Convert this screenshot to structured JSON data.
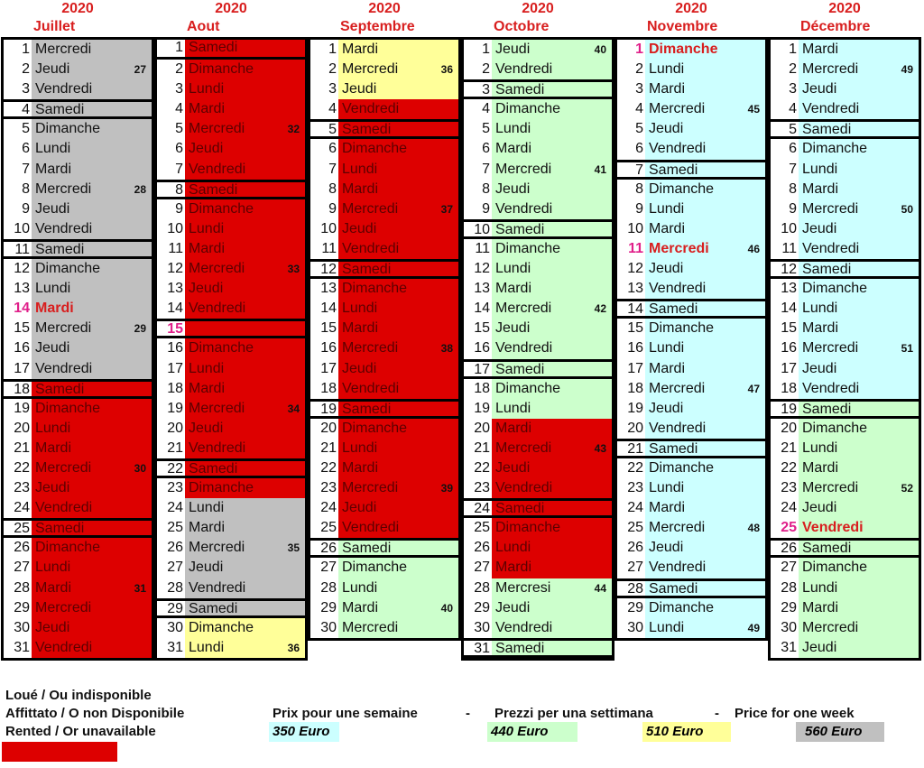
{
  "colors": {
    "g": "#c0c0c0",
    "r": "#dd0000",
    "y": "#ffff99",
    "gr": "#ccffcc",
    "c": "#ccffff"
  },
  "months": [
    {
      "year": "2020",
      "name": "Juillet",
      "days": [
        [
          1,
          "Mercredi",
          "",
          "g"
        ],
        [
          2,
          "Jeudi",
          "27",
          "g"
        ],
        [
          3,
          "Vendredi",
          "",
          "g"
        ],
        [
          4,
          "Samedi",
          "",
          "g"
        ],
        [
          5,
          "Dimanche",
          "",
          "g"
        ],
        [
          6,
          "Lundi",
          "",
          "g"
        ],
        [
          7,
          "Mardi",
          "",
          "g"
        ],
        [
          8,
          "Mercredi",
          "28",
          "g"
        ],
        [
          9,
          "Jeudi",
          "",
          "g"
        ],
        [
          10,
          "Vendredi",
          "",
          "g"
        ],
        [
          11,
          "Samedi",
          "",
          "g"
        ],
        [
          12,
          "Dimanche",
          "",
          "g"
        ],
        [
          13,
          "Lundi",
          "",
          "g"
        ],
        [
          14,
          "Mardi",
          "",
          "g",
          1
        ],
        [
          15,
          "Mercredi",
          "29",
          "g"
        ],
        [
          16,
          "Jeudi",
          "",
          "g"
        ],
        [
          17,
          "Vendredi",
          "",
          "g"
        ],
        [
          18,
          "Samedi",
          "",
          "r"
        ],
        [
          19,
          "Dimanche",
          "",
          "r"
        ],
        [
          20,
          "Lundi",
          "",
          "r"
        ],
        [
          21,
          "Mardi",
          "",
          "r"
        ],
        [
          22,
          "Mercredi",
          "30",
          "r"
        ],
        [
          23,
          "Jeudi",
          "",
          "r"
        ],
        [
          24,
          "Vendredi",
          "",
          "r"
        ],
        [
          25,
          "Samedi",
          "",
          "r"
        ],
        [
          26,
          "Dimanche",
          "",
          "r"
        ],
        [
          27,
          "Lundi",
          "",
          "r"
        ],
        [
          28,
          "Mardi",
          "31",
          "r"
        ],
        [
          29,
          "Mercredi",
          "",
          "r"
        ],
        [
          30,
          "Jeudi",
          "",
          "r"
        ],
        [
          31,
          "Vendredi",
          "",
          "r"
        ]
      ]
    },
    {
      "year": "2020",
      "name": "Aout",
      "days": [
        [
          1,
          "Samedi",
          "",
          "r"
        ],
        [
          2,
          "Dimanche",
          "",
          "r"
        ],
        [
          3,
          "Lundi",
          "",
          "r"
        ],
        [
          4,
          "Mardi",
          "",
          "r"
        ],
        [
          5,
          "Mercredi",
          "32",
          "r"
        ],
        [
          6,
          "Jeudi",
          "",
          "r"
        ],
        [
          7,
          "Vendredi",
          "",
          "r"
        ],
        [
          8,
          "Samedi",
          "",
          "r"
        ],
        [
          9,
          "Dimanche",
          "",
          "r"
        ],
        [
          10,
          "Lundi",
          "",
          "r"
        ],
        [
          11,
          "Mardi",
          "",
          "r"
        ],
        [
          12,
          "Mercredi",
          "33",
          "r"
        ],
        [
          13,
          "Jeudi",
          "",
          "r"
        ],
        [
          14,
          "Vendredi",
          "",
          "r"
        ],
        [
          15,
          "",
          "",
          "r",
          1
        ],
        [
          16,
          "Dimanche",
          "",
          "r"
        ],
        [
          17,
          "Lundi",
          "",
          "r"
        ],
        [
          18,
          "Mardi",
          "",
          "r"
        ],
        [
          19,
          "Mercredi",
          "34",
          "r"
        ],
        [
          20,
          "Jeudi",
          "",
          "r"
        ],
        [
          21,
          "Vendredi",
          "",
          "r"
        ],
        [
          22,
          "Samedi",
          "",
          "r"
        ],
        [
          23,
          "Dimanche",
          "",
          "r"
        ],
        [
          24,
          "Lundi",
          "",
          "g"
        ],
        [
          25,
          "Mardi",
          "",
          "g"
        ],
        [
          26,
          "Mercredi",
          "35",
          "g"
        ],
        [
          27,
          "Jeudi",
          "",
          "g"
        ],
        [
          28,
          "Vendredi",
          "",
          "g"
        ],
        [
          29,
          "Samedi",
          "",
          "g"
        ],
        [
          30,
          "Dimanche",
          "",
          "y"
        ],
        [
          31,
          "Lundi",
          "36",
          "y"
        ]
      ]
    },
    {
      "year": "2020",
      "name": "Septembre",
      "days": [
        [
          1,
          "Mardi",
          "",
          "y"
        ],
        [
          2,
          "Mercredi",
          "36",
          "y"
        ],
        [
          3,
          "Jeudi",
          "",
          "y"
        ],
        [
          4,
          "Vendredi",
          "",
          "r"
        ],
        [
          5,
          "Samedi",
          "",
          "r"
        ],
        [
          6,
          "Dimanche",
          "",
          "r"
        ],
        [
          7,
          "Lundi",
          "",
          "r"
        ],
        [
          8,
          "Mardi",
          "",
          "r"
        ],
        [
          9,
          "Mercredi",
          "37",
          "r"
        ],
        [
          10,
          "Jeudi",
          "",
          "r"
        ],
        [
          11,
          "Vendredi",
          "",
          "r"
        ],
        [
          12,
          "Samedi",
          "",
          "r"
        ],
        [
          13,
          "Dimanche",
          "",
          "r"
        ],
        [
          14,
          "Lundi",
          "",
          "r"
        ],
        [
          15,
          "Mardi",
          "",
          "r"
        ],
        [
          16,
          "Mercredi",
          "38",
          "r"
        ],
        [
          17,
          "Jeudi",
          "",
          "r"
        ],
        [
          18,
          "Vendredi",
          "",
          "r"
        ],
        [
          19,
          "Samedi",
          "",
          "r"
        ],
        [
          20,
          "Dimanche",
          "",
          "r"
        ],
        [
          21,
          "Lundi",
          "",
          "r"
        ],
        [
          22,
          "Mardi",
          "",
          "r"
        ],
        [
          23,
          "Mercredi",
          "39",
          "r"
        ],
        [
          24,
          "Jeudi",
          "",
          "r"
        ],
        [
          25,
          "Vendredi",
          "",
          "r"
        ],
        [
          26,
          "Samedi",
          "",
          "gr"
        ],
        [
          27,
          "Dimanche",
          "",
          "gr"
        ],
        [
          28,
          "Lundi",
          "",
          "gr"
        ],
        [
          29,
          "Mardi",
          "40",
          "gr"
        ],
        [
          30,
          "Mercredi",
          "",
          "gr"
        ]
      ]
    },
    {
      "year": "2020",
      "name": "Octobre",
      "days": [
        [
          1,
          "Jeudi",
          "40",
          "gr"
        ],
        [
          2,
          "Vendredi",
          "",
          "gr"
        ],
        [
          3,
          "Samedi",
          "",
          "gr"
        ],
        [
          4,
          "Dimanche",
          "",
          "gr"
        ],
        [
          5,
          "Lundi",
          "",
          "gr"
        ],
        [
          6,
          "Mardi",
          "",
          "gr"
        ],
        [
          7,
          "Mercredi",
          "41",
          "gr"
        ],
        [
          8,
          "Jeudi",
          "",
          "gr"
        ],
        [
          9,
          "Vendredi",
          "",
          "gr"
        ],
        [
          10,
          "Samedi",
          "",
          "gr"
        ],
        [
          11,
          "Dimanche",
          "",
          "gr"
        ],
        [
          12,
          "Lundi",
          "",
          "gr"
        ],
        [
          13,
          "Mardi",
          "",
          "gr"
        ],
        [
          14,
          "Mercredi",
          "42",
          "gr"
        ],
        [
          15,
          "Jeudi",
          "",
          "gr"
        ],
        [
          16,
          "Vendredi",
          "",
          "gr"
        ],
        [
          17,
          "Samedi",
          "",
          "gr"
        ],
        [
          18,
          "Dimanche",
          "",
          "gr"
        ],
        [
          19,
          "Lundi",
          "",
          "gr"
        ],
        [
          20,
          "Mardi",
          "",
          "r"
        ],
        [
          21,
          "Mercredi",
          "43",
          "r"
        ],
        [
          22,
          "Jeudi",
          "",
          "r"
        ],
        [
          23,
          "Vendredi",
          "",
          "r"
        ],
        [
          24,
          "Samedi",
          "",
          "r"
        ],
        [
          25,
          "Dimanche",
          "",
          "r"
        ],
        [
          26,
          "Lundi",
          "",
          "r"
        ],
        [
          27,
          "Mardi",
          "",
          "r"
        ],
        [
          28,
          "Mercresi",
          "44",
          "gr"
        ],
        [
          29,
          "Jeudi",
          "",
          "gr"
        ],
        [
          30,
          "Vendredi",
          "",
          "gr"
        ],
        [
          31,
          "Samedi",
          "",
          "gr"
        ]
      ]
    },
    {
      "year": "2020",
      "name": "Novembre",
      "days": [
        [
          1,
          "Dimanche",
          "",
          "c",
          1
        ],
        [
          2,
          "Lundi",
          "",
          "c"
        ],
        [
          3,
          "Mardi",
          "",
          "c"
        ],
        [
          4,
          "Mercredi",
          "45",
          "c"
        ],
        [
          5,
          "Jeudi",
          "",
          "c"
        ],
        [
          6,
          "Vendredi",
          "",
          "c"
        ],
        [
          7,
          "Samedi",
          "",
          "c"
        ],
        [
          8,
          "Dimanche",
          "",
          "c"
        ],
        [
          9,
          "Lundi",
          "",
          "c"
        ],
        [
          10,
          "Mardi",
          "",
          "c"
        ],
        [
          11,
          "Mercredi",
          "46",
          "c",
          1
        ],
        [
          12,
          "Jeudi",
          "",
          "c"
        ],
        [
          13,
          "Vendredi",
          "",
          "c"
        ],
        [
          14,
          "Samedi",
          "",
          "c"
        ],
        [
          15,
          "Dimanche",
          "",
          "c"
        ],
        [
          16,
          "Lundi",
          "",
          "c"
        ],
        [
          17,
          "Mardi",
          "",
          "c"
        ],
        [
          18,
          "Mercredi",
          "47",
          "c"
        ],
        [
          19,
          "Jeudi",
          "",
          "c"
        ],
        [
          20,
          "Vendredi",
          "",
          "c"
        ],
        [
          21,
          "Samedi",
          "",
          "c"
        ],
        [
          22,
          "Dimanche",
          "",
          "c"
        ],
        [
          23,
          "Lundi",
          "",
          "c"
        ],
        [
          24,
          "Mardi",
          "",
          "c"
        ],
        [
          25,
          "Mercredi",
          "48",
          "c"
        ],
        [
          26,
          "Jeudi",
          "",
          "c"
        ],
        [
          27,
          "Vendredi",
          "",
          "c"
        ],
        [
          28,
          "Samedi",
          "",
          "c"
        ],
        [
          29,
          "Dimanche",
          "",
          "c"
        ],
        [
          30,
          "Lundi",
          "49",
          "c"
        ]
      ]
    },
    {
      "year": "2020",
      "name": "Décembre",
      "days": [
        [
          1,
          "Mardi",
          "",
          "c"
        ],
        [
          2,
          "Mercredi",
          "49",
          "c"
        ],
        [
          3,
          "Jeudi",
          "",
          "c"
        ],
        [
          4,
          "Vendredi",
          "",
          "c"
        ],
        [
          5,
          "Samedi",
          "",
          "c"
        ],
        [
          6,
          "Dimanche",
          "",
          "c"
        ],
        [
          7,
          "Lundi",
          "",
          "c"
        ],
        [
          8,
          "Mardi",
          "",
          "c"
        ],
        [
          9,
          "Mercredi",
          "50",
          "c"
        ],
        [
          10,
          "Jeudi",
          "",
          "c"
        ],
        [
          11,
          "Vendredi",
          "",
          "c"
        ],
        [
          12,
          "Samedi",
          "",
          "c"
        ],
        [
          13,
          "Dimanche",
          "",
          "c"
        ],
        [
          14,
          "Lundi",
          "",
          "c"
        ],
        [
          15,
          "Mardi",
          "",
          "c"
        ],
        [
          16,
          "Mercredi",
          "51",
          "c"
        ],
        [
          17,
          "Jeudi",
          "",
          "c"
        ],
        [
          18,
          "Vendredi",
          "",
          "c"
        ],
        [
          19,
          "Samedi",
          "",
          "gr"
        ],
        [
          20,
          "Dimanche",
          "",
          "gr"
        ],
        [
          21,
          "Lundi",
          "",
          "gr"
        ],
        [
          22,
          "Mardi",
          "",
          "gr"
        ],
        [
          23,
          "Mercredi",
          "52",
          "gr"
        ],
        [
          24,
          "Jeudi",
          "",
          "gr"
        ],
        [
          25,
          "Vendredi",
          "",
          "gr",
          1
        ],
        [
          26,
          "Samedi",
          "",
          "gr"
        ],
        [
          27,
          "Dimanche",
          "",
          "gr"
        ],
        [
          28,
          "Lundi",
          "",
          "gr"
        ],
        [
          29,
          "Mardi",
          "",
          "gr"
        ],
        [
          30,
          "Mercredi",
          "",
          "gr"
        ],
        [
          31,
          "Jeudi",
          "",
          "gr"
        ]
      ]
    }
  ],
  "legend": {
    "rented_fr": "Loué / Ou indisponible",
    "rented_it": "Affittato / O non Disponibile",
    "rented_en": "Rented / Or unavailable",
    "price_fr": "Prix pour une semaine",
    "sep1": "-",
    "price_it": "Prezzi per una settimana",
    "sep2": "-",
    "price_en": "Price for one week",
    "prices": [
      {
        "label": "350 Euro",
        "color": "#ccffff"
      },
      {
        "label": "440 Euro",
        "color": "#ccffcc"
      },
      {
        "label": "510 Euro",
        "color": "#ffff99"
      },
      {
        "label": "560 Euro",
        "color": "#c0c0c0"
      }
    ]
  }
}
